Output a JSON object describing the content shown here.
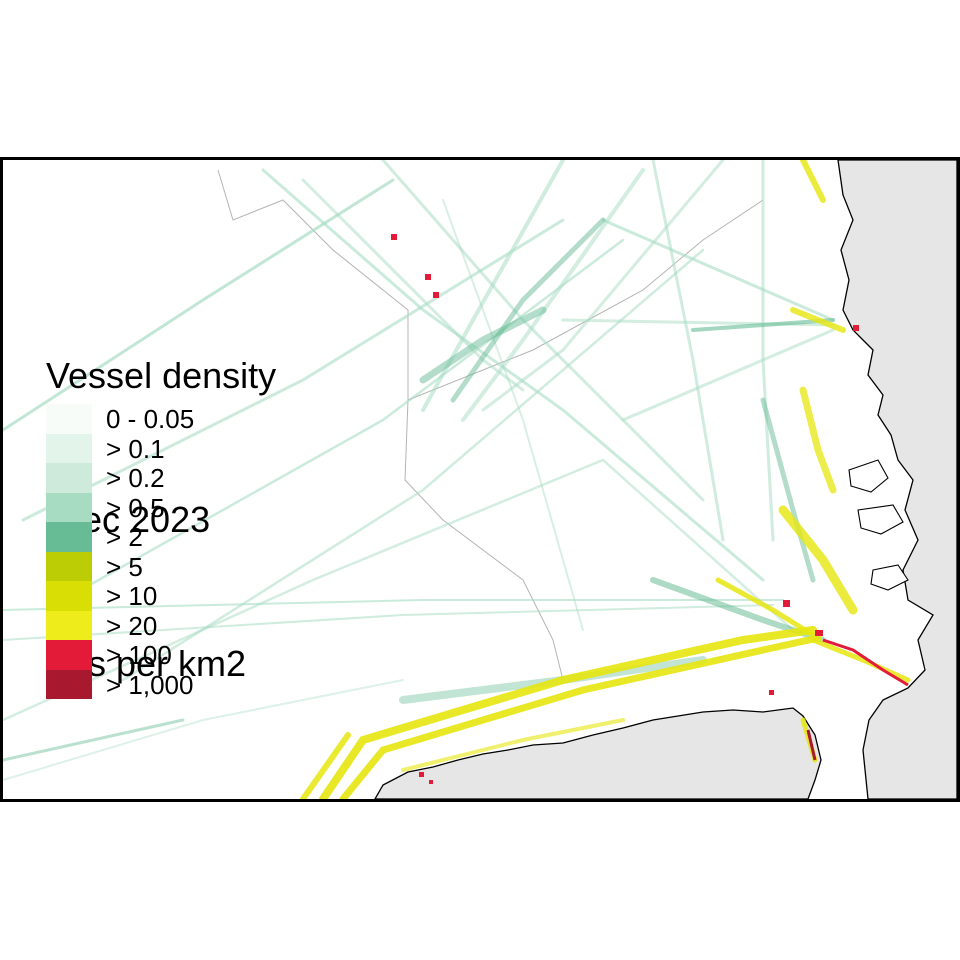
{
  "legend": {
    "title_lines": [
      "Vessel density",
      " Dec 2023",
      " hrs per km2"
    ],
    "classes": [
      {
        "label": "0 - 0.05",
        "color": "#f7fcf9"
      },
      {
        "label": "> 0.1",
        "color": "#e3f4ea"
      },
      {
        "label": "> 0.2",
        "color": "#cdeadb"
      },
      {
        "label": "> 0.5",
        "color": "#a7dcc3"
      },
      {
        "label": "> 2",
        "color": "#67bc95"
      },
      {
        "label": "> 5",
        "color": "#bccd06"
      },
      {
        "label": "> 10",
        "color": "#d9de04"
      },
      {
        "label": "> 20",
        "color": "#eeed1b"
      },
      {
        "label": "> 100",
        "color": "#e31a38"
      },
      {
        "label": "> 1,000",
        "color": "#a8182e"
      }
    ]
  },
  "colors": {
    "land": "#e6e6e6",
    "coastline": "#000000",
    "boundary": "#b4b4b4",
    "lane_light": "#a7dcc3",
    "lane_mid": "#67bc95",
    "lane_heavy": "#e6e60e",
    "port": "#e31a38"
  }
}
